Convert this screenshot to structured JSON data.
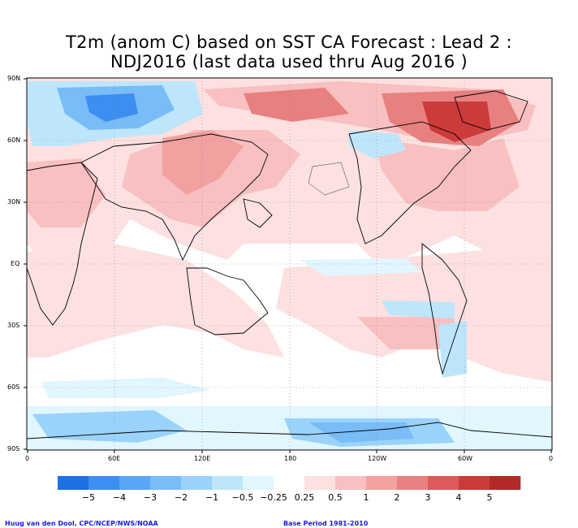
{
  "title": {
    "line1": "T2m (anom C) based on SST CA Forecast : Lead 2 :",
    "line2": "NDJ2016 (last data used thru Aug 2016 )"
  },
  "map": {
    "lat_labels": [
      "90N",
      "60N",
      "30N",
      "EQ",
      "30S",
      "60S",
      "90S"
    ],
    "lon_labels": [
      "0",
      "60E",
      "120E",
      "180",
      "120W",
      "60W",
      "0"
    ],
    "projection": "cylindrical equidistant, 0 to 360 longitude"
  },
  "legend": {
    "labels": [
      "−5",
      "−4",
      "−3",
      "−2",
      "−1",
      "−0.5",
      "−0.25",
      "0.25",
      "0.5",
      "1",
      "2",
      "3",
      "4",
      "5"
    ],
    "colors": [
      "#1f6fe6",
      "#3c8ef0",
      "#5aa5f5",
      "#78bcf8",
      "#9ad2fa",
      "#bde6fc",
      "#e1f6fe",
      "#ffffff",
      "#fde0e0",
      "#f8c0c0",
      "#f2a0a0",
      "#e88080",
      "#dc5a5a",
      "#cc3a3a",
      "#b42828"
    ]
  },
  "footer": {
    "left": "Huug van den Dool, CPC/NCEP/NWS/NOAA",
    "right": "Base Period 1981-2010"
  }
}
